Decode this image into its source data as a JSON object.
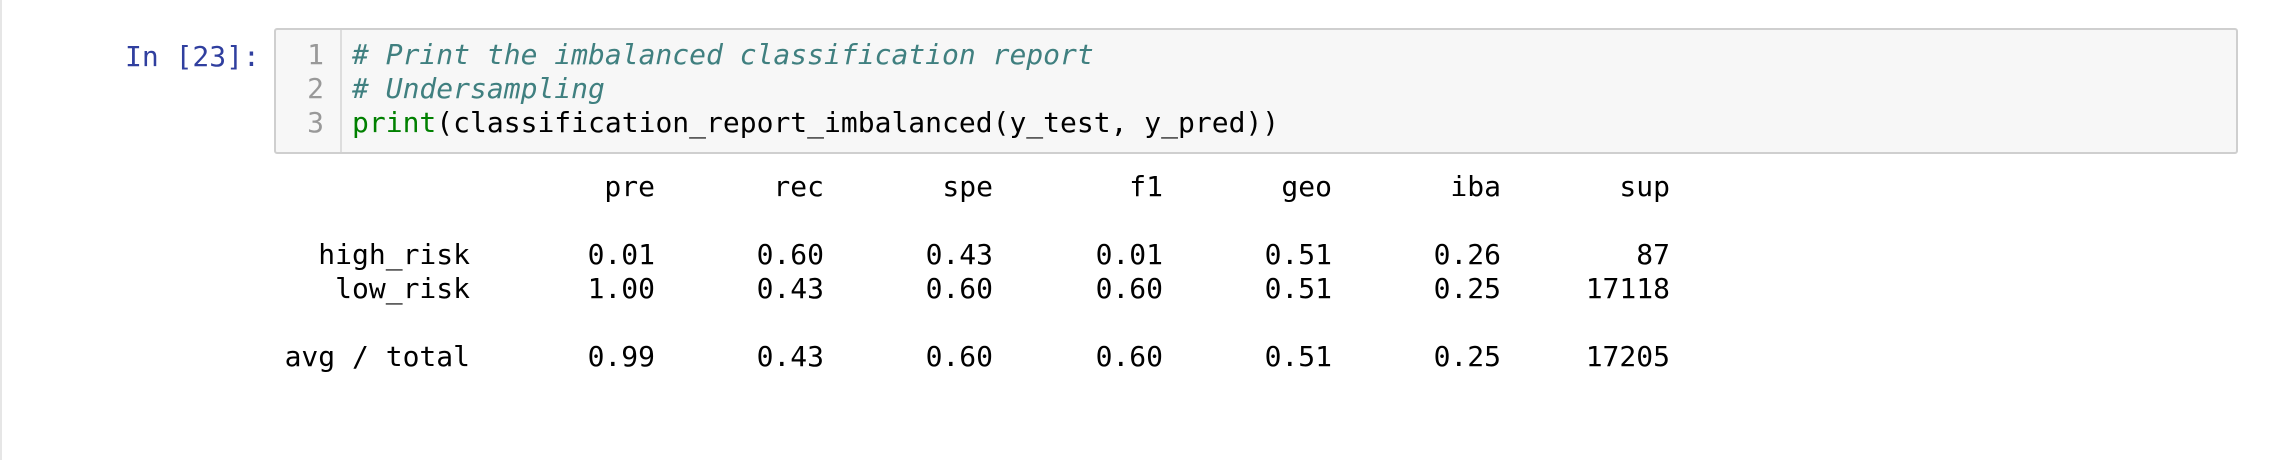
{
  "cell": {
    "prompt": "In [23]:",
    "line_numbers": [
      "1",
      "2",
      "3"
    ],
    "code": {
      "line1": "# Print the imbalanced classification report",
      "line2": "# Undersampling",
      "line3_builtin": "print",
      "line3_rest": "(classification_report_imbalanced(y_test, y_pred))"
    }
  },
  "output": {
    "headers": [
      "pre",
      "rec",
      "spe",
      "f1",
      "geo",
      "iba",
      "sup"
    ],
    "rows": [
      {
        "label": "high_risk",
        "values": [
          "0.01",
          "0.60",
          "0.43",
          "0.01",
          "0.51",
          "0.26",
          "87"
        ]
      },
      {
        "label": "low_risk",
        "values": [
          "1.00",
          "0.43",
          "0.60",
          "0.60",
          "0.51",
          "0.25",
          "17118"
        ]
      }
    ],
    "total": {
      "label": "avg / total",
      "values": [
        "0.99",
        "0.43",
        "0.60",
        "0.60",
        "0.51",
        "0.25",
        "17205"
      ]
    }
  },
  "colors": {
    "prompt": "#303f9f",
    "comment": "#408080",
    "builtin": "#008000",
    "editor_bg": "#f7f7f7",
    "editor_border": "#cfcfcf",
    "line_number": "#999999"
  }
}
